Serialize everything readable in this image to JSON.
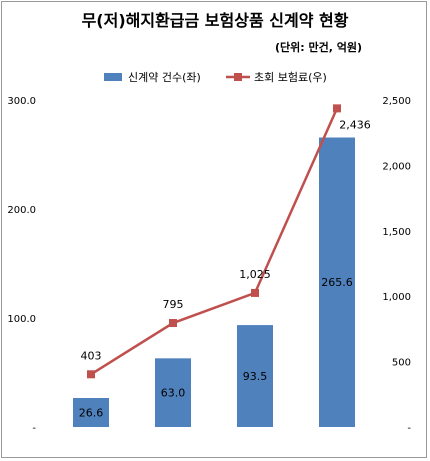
{
  "chart_data": {
    "type": "bar",
    "title": "무(저)해지환급금 보험상품 신계약 현황",
    "subtitle": "(단위: 만건, 억원)",
    "categories": [
      "",
      "",
      "",
      ""
    ],
    "series": [
      {
        "name": "신계약 건수(좌)",
        "type": "bar",
        "axis": "left",
        "values": [
          26.6,
          63.0,
          93.5,
          265.6
        ],
        "labels": [
          "26.6",
          "63.0",
          "93.5",
          "265.6"
        ],
        "color": "#4f81bd"
      },
      {
        "name": "초회 보험료(우)",
        "type": "line",
        "axis": "right",
        "values": [
          403,
          795,
          1025,
          2436
        ],
        "labels": [
          "403",
          "795",
          "1,025",
          "2,436"
        ],
        "color": "#c0504d"
      }
    ],
    "y_left": {
      "ylim": [
        0,
        300
      ],
      "ticks": [
        0,
        100,
        200,
        300
      ],
      "tick_labels": [
        "-",
        "100.0",
        "200.0",
        "300.0"
      ]
    },
    "y_right": {
      "ylim": [
        0,
        2500
      ],
      "ticks": [
        0,
        500,
        1000,
        1500,
        2000,
        2500
      ],
      "tick_labels": [
        "-",
        "500",
        "1,000",
        "1,500",
        "2,000",
        "2,500"
      ]
    },
    "grid": false,
    "legend_position": "top"
  }
}
